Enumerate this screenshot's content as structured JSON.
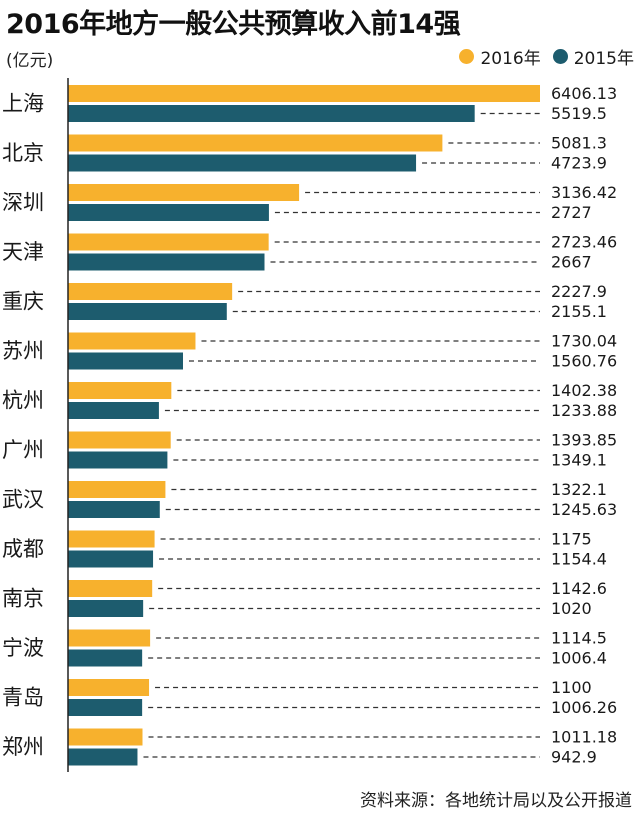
{
  "header": {
    "title": "2016年地方一般公共预算收入前14强",
    "unit": "(亿元)"
  },
  "legend": [
    {
      "label": "2016年",
      "color": "#f7b12d"
    },
    {
      "label": "2015年",
      "color": "#1d5c6e"
    }
  ],
  "source": "资料来源：各地统计局以及公开报道",
  "chart_data": {
    "type": "bar",
    "orientation": "horizontal",
    "title": "2016年地方一般公共预算收入前14强",
    "ylabel": "(亿元)",
    "categories": [
      "上海",
      "北京",
      "深圳",
      "天津",
      "重庆",
      "苏州",
      "杭州",
      "广州",
      "武汉",
      "成都",
      "南京",
      "宁波",
      "青岛",
      "郑州"
    ],
    "series": [
      {
        "name": "2016年",
        "color": "#f7b12d",
        "values": [
          6406.13,
          5081.3,
          3136.42,
          2723.46,
          2227.9,
          1730.04,
          1402.38,
          1393.85,
          1322.1,
          1175,
          1142.6,
          1114.5,
          1100,
          1011.18
        ],
        "labels": [
          "6406.13",
          "5081.3",
          "3136.42",
          "2723.46",
          "2227.9",
          "1730.04",
          "1402.38",
          "1393.85",
          "1322.1",
          "1175",
          "1142.6",
          "1114.5",
          "1100",
          "1011.18"
        ]
      },
      {
        "name": "2015年",
        "color": "#1d5c6e",
        "values": [
          5519.5,
          4723.9,
          2727,
          2667,
          2155.1,
          1560.76,
          1233.88,
          1349.1,
          1245.63,
          1154.4,
          1020,
          1006.4,
          1006.26,
          942.9
        ],
        "labels": [
          "5519.5",
          "4723.9",
          "2727",
          "2667",
          "2155.1",
          "1560.76",
          "1233.88",
          "1349.1",
          "1245.63",
          "1154.4",
          "1020",
          "1006.4",
          "1006.26",
          "942.9"
        ]
      }
    ],
    "xlim": [
      0,
      6406.13
    ],
    "grid": false,
    "legend_position": "top-right"
  }
}
